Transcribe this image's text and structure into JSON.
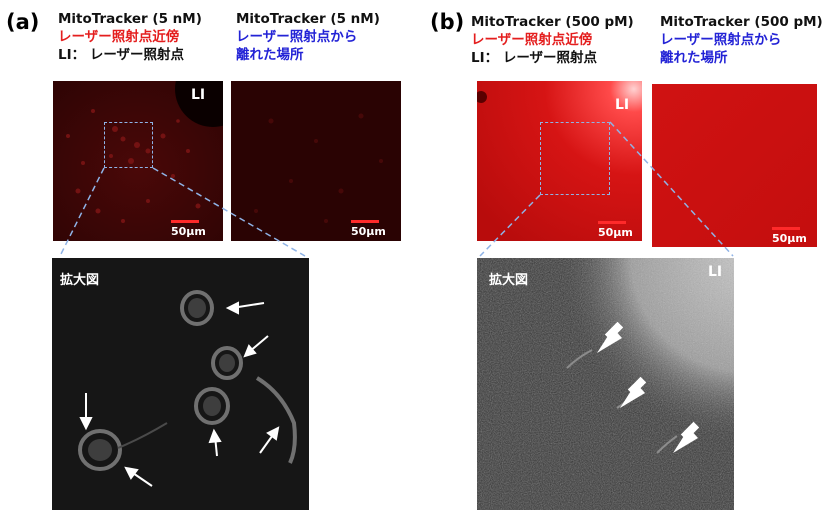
{
  "panel_a": {
    "label": "(a)",
    "left_title": "MitoTracker (5 nM)",
    "left_sub_red": "レーザー照射点近傍",
    "left_sub_black": "LI： レーザー照射点",
    "right_title": "MitoTracker (5 nM)",
    "right_sub_1": "レーザー照射点から",
    "right_sub_2": "離れた場所",
    "li_mark": "LI",
    "scale_left": "50μm",
    "scale_right": "50μm",
    "zoom_label": "拡大図"
  },
  "panel_b": {
    "label": "(b)",
    "left_title": "MitoTracker (500 pM)",
    "left_sub_red": "レーザー照射点近傍",
    "left_sub_black": "LI： レーザー照射点",
    "right_title": "MitoTracker (500 pM)",
    "right_sub_1": "レーザー照射点から",
    "right_sub_2": "離れた場所",
    "li_mark": "LI",
    "scale_left": "50μm",
    "scale_right": "50μm",
    "zoom_label": "拡大図",
    "zoom_li_mark": "LI"
  },
  "colors": {
    "near_text": "#e41e1e",
    "far_text": "#2323d6",
    "dashed": "#8fb3e6",
    "scale_bar": "#ff2a2a"
  }
}
